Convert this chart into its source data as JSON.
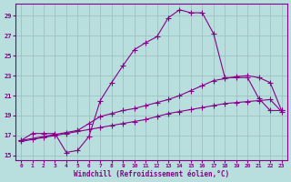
{
  "xlabel": "Windchill (Refroidissement éolien,°C)",
  "background_color": "#b8dede",
  "grid_color": "#99bbbb",
  "line_color": "#880088",
  "xlim": [
    -0.5,
    23.5
  ],
  "ylim": [
    14.5,
    30.2
  ],
  "yticks": [
    15,
    17,
    19,
    21,
    23,
    25,
    27,
    29
  ],
  "xticks": [
    0,
    1,
    2,
    3,
    4,
    5,
    6,
    7,
    8,
    9,
    10,
    11,
    12,
    13,
    14,
    15,
    16,
    17,
    18,
    19,
    20,
    21,
    22,
    23
  ],
  "curve1_x": [
    0,
    1,
    2,
    3,
    4,
    5,
    6,
    7,
    8,
    9,
    10,
    11,
    12,
    13,
    14,
    15,
    16,
    17,
    18,
    19,
    20,
    21,
    22,
    23
  ],
  "curve1_y": [
    16.5,
    17.2,
    17.2,
    17.2,
    15.3,
    15.5,
    16.9,
    20.5,
    22.3,
    24.0,
    25.6,
    26.3,
    26.9,
    28.8,
    29.6,
    29.3,
    29.3,
    27.2,
    22.8,
    22.8,
    22.8,
    20.7,
    19.5,
    19.5
  ],
  "curve2_x": [
    0,
    3,
    4,
    5,
    6,
    7,
    8,
    9,
    10,
    11,
    12,
    13,
    14,
    15,
    16,
    17,
    18,
    19,
    20,
    21,
    22,
    23
  ],
  "curve2_y": [
    16.5,
    17.1,
    17.3,
    17.5,
    18.2,
    18.9,
    19.2,
    19.5,
    19.7,
    20.0,
    20.3,
    20.6,
    21.0,
    21.5,
    22.0,
    22.5,
    22.7,
    22.9,
    23.0,
    22.8,
    22.3,
    19.5
  ],
  "curve3_x": [
    0,
    1,
    2,
    3,
    4,
    5,
    6,
    7,
    8,
    9,
    10,
    11,
    12,
    13,
    14,
    15,
    16,
    17,
    18,
    19,
    20,
    21,
    22,
    23
  ],
  "curve3_y": [
    16.4,
    16.6,
    16.8,
    17.0,
    17.2,
    17.4,
    17.6,
    17.8,
    18.0,
    18.2,
    18.4,
    18.6,
    18.9,
    19.2,
    19.4,
    19.6,
    19.8,
    20.0,
    20.2,
    20.3,
    20.4,
    20.5,
    20.6,
    19.4
  ]
}
